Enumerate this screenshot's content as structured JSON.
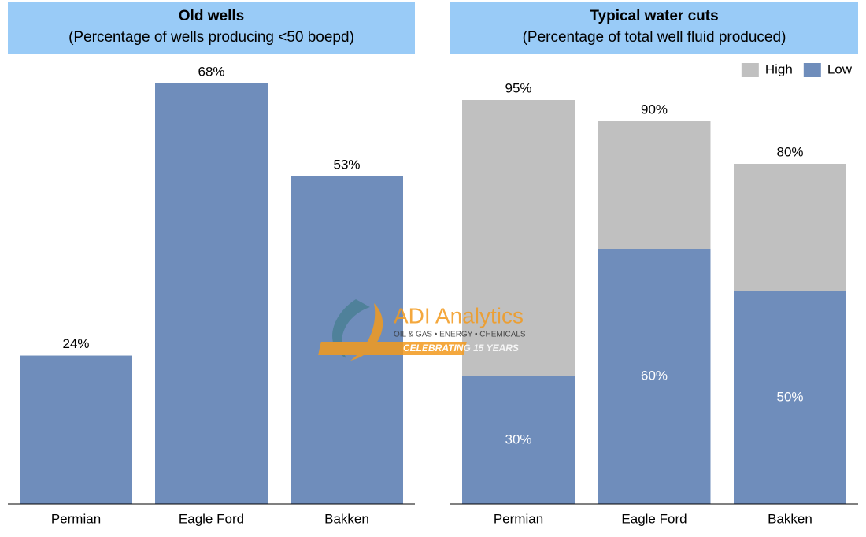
{
  "chart_data": [
    {
      "type": "bar",
      "title": "Old wells",
      "subtitle": "(Percentage of wells producing <50 boepd)",
      "categories": [
        "Permian",
        "Eagle Ford",
        "Bakken"
      ],
      "values": [
        24,
        68,
        53
      ],
      "value_labels": [
        "24%",
        "68%",
        "53%"
      ],
      "color": "#6f8dbb",
      "ylim": [
        0,
        68
      ]
    },
    {
      "type": "overlap-bar",
      "title": "Typical water cuts",
      "subtitle": "(Percentage of total well fluid produced)",
      "categories": [
        "Permian",
        "Eagle Ford",
        "Bakken"
      ],
      "series": [
        {
          "name": "High",
          "color": "#c0c0c0",
          "values": [
            95,
            90,
            80
          ],
          "value_labels": [
            "95%",
            "90%",
            "80%"
          ]
        },
        {
          "name": "Low",
          "color": "#6f8dbb",
          "values": [
            30,
            60,
            50
          ],
          "value_labels": [
            "30%",
            "60%",
            "50%"
          ]
        }
      ],
      "ylim": [
        0,
        95
      ],
      "legend": "top-right"
    }
  ],
  "watermark": {
    "name": "ADI Analytics",
    "tagline": "OIL & GAS • ENERGY • CHEMICALS",
    "badge": "CELEBRATING 15 YEARS"
  }
}
